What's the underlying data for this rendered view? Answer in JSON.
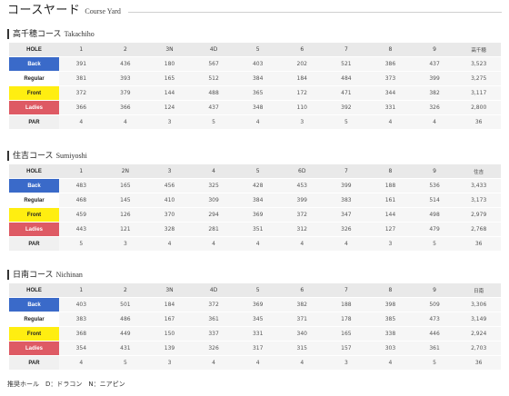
{
  "header": {
    "title_jp": "コースヤード",
    "title_en": "Course Yard"
  },
  "courses": [
    {
      "name_jp": "高千穂コース",
      "name_en": "Takachiho",
      "holes": [
        "HOLE",
        "1",
        "2",
        "3N",
        "4D",
        "5",
        "6",
        "7",
        "8",
        "9",
        "高千穂"
      ],
      "back": [
        "Back",
        "391",
        "436",
        "180",
        "567",
        "403",
        "202",
        "521",
        "386",
        "437",
        "3,523"
      ],
      "regular": [
        "Regular",
        "381",
        "393",
        "165",
        "512",
        "384",
        "184",
        "484",
        "373",
        "399",
        "3,275"
      ],
      "front": [
        "Front",
        "372",
        "379",
        "144",
        "488",
        "365",
        "172",
        "471",
        "344",
        "382",
        "3,117"
      ],
      "ladies": [
        "Ladies",
        "366",
        "366",
        "124",
        "437",
        "348",
        "110",
        "392",
        "331",
        "326",
        "2,800"
      ],
      "par": [
        "PAR",
        "4",
        "4",
        "3",
        "5",
        "4",
        "3",
        "5",
        "4",
        "4",
        "36"
      ]
    },
    {
      "name_jp": "住吉コース",
      "name_en": "Sumiyoshi",
      "holes": [
        "HOLE",
        "1",
        "2N",
        "3",
        "4",
        "5",
        "6D",
        "7",
        "8",
        "9",
        "住吉"
      ],
      "back": [
        "Back",
        "483",
        "165",
        "456",
        "325",
        "428",
        "453",
        "399",
        "188",
        "536",
        "3,433"
      ],
      "regular": [
        "Regular",
        "468",
        "145",
        "410",
        "309",
        "384",
        "399",
        "383",
        "161",
        "514",
        "3,173"
      ],
      "front": [
        "Front",
        "459",
        "126",
        "370",
        "294",
        "369",
        "372",
        "347",
        "144",
        "498",
        "2,979"
      ],
      "ladies": [
        "Ladies",
        "443",
        "121",
        "328",
        "281",
        "351",
        "312",
        "326",
        "127",
        "479",
        "2,768"
      ],
      "par": [
        "PAR",
        "5",
        "3",
        "4",
        "4",
        "4",
        "4",
        "4",
        "3",
        "5",
        "36"
      ]
    },
    {
      "name_jp": "日南コース",
      "name_en": "Nichinan",
      "holes": [
        "HOLE",
        "1",
        "2",
        "3N",
        "4D",
        "5",
        "6",
        "7",
        "8",
        "9",
        "日南"
      ],
      "back": [
        "Back",
        "403",
        "501",
        "184",
        "372",
        "369",
        "382",
        "188",
        "398",
        "509",
        "3,306"
      ],
      "regular": [
        "Regular",
        "383",
        "486",
        "167",
        "361",
        "345",
        "371",
        "178",
        "385",
        "473",
        "3,149"
      ],
      "front": [
        "Front",
        "368",
        "449",
        "150",
        "337",
        "331",
        "340",
        "165",
        "338",
        "446",
        "2,924"
      ],
      "ladies": [
        "Ladies",
        "354",
        "431",
        "139",
        "326",
        "317",
        "315",
        "157",
        "303",
        "361",
        "2,703"
      ],
      "par": [
        "PAR",
        "4",
        "5",
        "3",
        "4",
        "4",
        "4",
        "3",
        "4",
        "5",
        "36"
      ]
    }
  ],
  "footnote": "推奨ホール　D：ドラコン　N：ニアピン",
  "colors": {
    "back": "#3a6ac9",
    "front": "#ffee11",
    "ladies": "#de5a64",
    "header_row": "#e9e9e9"
  }
}
